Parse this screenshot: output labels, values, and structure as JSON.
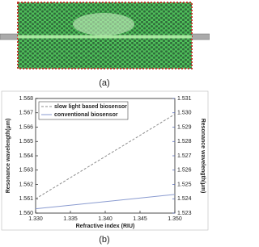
{
  "panel_labels": [
    "(a)",
    "(b)"
  ],
  "chart_data": {
    "type": "line",
    "x_label": "Refractive index (RIU)",
    "y_label": "Resonance wavelength(μm)",
    "y2_label": "Resonance wavelength(μm)",
    "x": [
      1.33,
      1.35
    ],
    "series": [
      {
        "name": "slow light based biosensor",
        "color": "#8c8c8c",
        "line_style": "dashed",
        "axis": "y",
        "values": [
          1.561,
          1.5669
        ]
      },
      {
        "name": "conventional biosensor",
        "color": "#8a9bd0",
        "line_style": "solid",
        "axis": "y2",
        "values": [
          1.5233,
          1.5243
        ]
      }
    ],
    "xlim": [
      1.33,
      1.35
    ],
    "xticks": [
      {
        "value": 1.33,
        "label": "1.330"
      },
      {
        "value": 1.335,
        "label": "1.335"
      },
      {
        "value": 1.34,
        "label": "1.340"
      },
      {
        "value": 1.345,
        "label": "1.345"
      },
      {
        "value": 1.35,
        "label": "1.350"
      }
    ],
    "ylim": [
      1.56,
      1.568
    ],
    "yticks": [
      {
        "value": 1.56,
        "label": "1.560"
      },
      {
        "value": 1.561,
        "label": "1.561"
      },
      {
        "value": 1.562,
        "label": "1.562"
      },
      {
        "value": 1.563,
        "label": "1.563"
      },
      {
        "value": 1.564,
        "label": "1.564"
      },
      {
        "value": 1.565,
        "label": "1.565"
      },
      {
        "value": 1.566,
        "label": "1.566"
      },
      {
        "value": 1.567,
        "label": "1.567"
      },
      {
        "value": 1.568,
        "label": "1.568"
      }
    ],
    "y2lim": [
      1.523,
      1.531
    ],
    "y2ticks": [
      {
        "value": 1.523,
        "label": "1.523"
      },
      {
        "value": 1.524,
        "label": "1.524"
      },
      {
        "value": 1.525,
        "label": "1.525"
      },
      {
        "value": 1.526,
        "label": "1.526"
      },
      {
        "value": 1.527,
        "label": "1.527"
      },
      {
        "value": 1.528,
        "label": "1.528"
      },
      {
        "value": 1.529,
        "label": "1.529"
      },
      {
        "value": 1.53,
        "label": "1.530"
      },
      {
        "value": 1.531,
        "label": "1.531"
      }
    ],
    "y2_color": "#4a5fb0",
    "legend": "upper left"
  }
}
